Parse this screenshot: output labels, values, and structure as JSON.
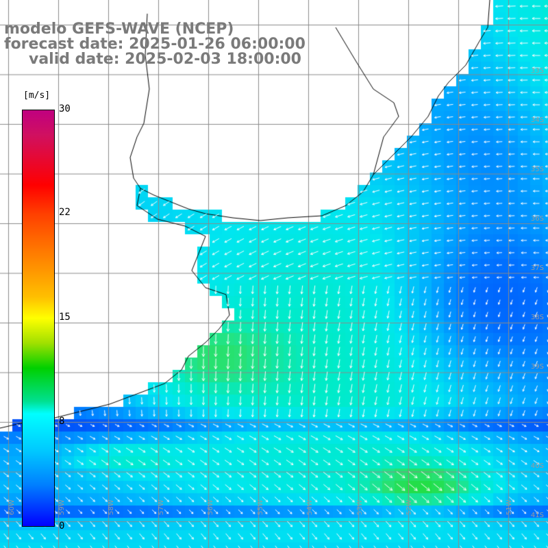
{
  "title": {
    "line1": "modelo GEFS-WAVE (NCEP)",
    "line2": "forecast date: 2025-01-26 06:00:00",
    "line3": "valid date: 2025-02-03 18:00:00"
  },
  "colorbar": {
    "unit": "[m/s]",
    "ticks": [
      "30",
      "22",
      "15",
      "8",
      "0"
    ]
  },
  "grid": {
    "lat_labels": [
      "33S",
      "34S",
      "35S",
      "36S",
      "37S",
      "38S",
      "39S",
      "40S",
      "41S"
    ],
    "lon_labels": [
      "60W",
      "59W",
      "58W",
      "57W",
      "56W",
      "55W",
      "54W",
      "53W",
      "52W",
      "51W"
    ]
  },
  "colors": {
    "land": "#ffffff",
    "coast": "#000000",
    "grid": "#8a8a8a",
    "arrow": "#ffffff",
    "weak": "#0033ee",
    "moderate": "#00b4ff",
    "strong": "#00e8e0",
    "peak": "#20e020"
  }
}
